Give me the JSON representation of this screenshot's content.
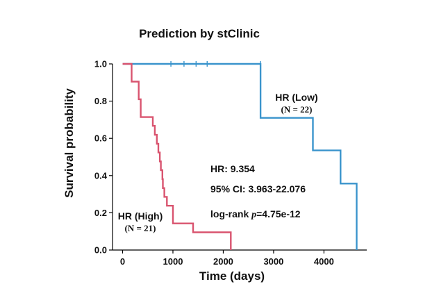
{
  "chart_data": {
    "type": "line",
    "title": "Prediction by stClinic",
    "xlabel": "Time (days)",
    "ylabel": "Survival probability",
    "xlim": [
      -200,
      4850
    ],
    "ylim": [
      0.0,
      1.0
    ],
    "x_ticks": [
      "0",
      "1000",
      "2000",
      "3000",
      "4000"
    ],
    "y_ticks": [
      "0.0",
      "0.2",
      "0.4",
      "0.6",
      "0.8",
      "1.0"
    ],
    "grid": false,
    "series": [
      {
        "name": "HR (Low)",
        "n_label": "(N = 22)",
        "color": "#3a94cc",
        "steps": [
          [
            0,
            1.0
          ],
          [
            2740,
            1.0
          ],
          [
            2740,
            0.71
          ],
          [
            3780,
            0.71
          ],
          [
            3780,
            0.535
          ],
          [
            4330,
            0.535
          ],
          [
            4330,
            0.357
          ],
          [
            4650,
            0.357
          ],
          [
            4650,
            0.0
          ]
        ],
        "censor_times": [
          960,
          1220,
          1460,
          1680,
          2740
        ]
      },
      {
        "name": "HR (High)",
        "n_label": "(N = 21)",
        "color": "#d9546f",
        "steps": [
          [
            0,
            1.0
          ],
          [
            180,
            1.0
          ],
          [
            180,
            0.905
          ],
          [
            320,
            0.905
          ],
          [
            320,
            0.81
          ],
          [
            360,
            0.81
          ],
          [
            360,
            0.714
          ],
          [
            600,
            0.714
          ],
          [
            600,
            0.667
          ],
          [
            640,
            0.667
          ],
          [
            640,
            0.619
          ],
          [
            680,
            0.619
          ],
          [
            680,
            0.571
          ],
          [
            710,
            0.571
          ],
          [
            710,
            0.524
          ],
          [
            740,
            0.524
          ],
          [
            740,
            0.476
          ],
          [
            760,
            0.476
          ],
          [
            760,
            0.429
          ],
          [
            790,
            0.429
          ],
          [
            790,
            0.381
          ],
          [
            800,
            0.381
          ],
          [
            800,
            0.333
          ],
          [
            830,
            0.333
          ],
          [
            830,
            0.286
          ],
          [
            880,
            0.286
          ],
          [
            880,
            0.238
          ],
          [
            1000,
            0.238
          ],
          [
            1000,
            0.143
          ],
          [
            1400,
            0.143
          ],
          [
            1400,
            0.095
          ],
          [
            2150,
            0.095
          ],
          [
            2150,
            0.0
          ]
        ],
        "censor_times": []
      }
    ],
    "annotations": {
      "hr": "HR: 9.354",
      "ci": "95% CI: 3.963-22.076",
      "logrank_prefix": "log-rank ",
      "logrank_p": "p",
      "logrank_value": "=4.75e-12",
      "logrank_color": "#e0241b"
    }
  }
}
